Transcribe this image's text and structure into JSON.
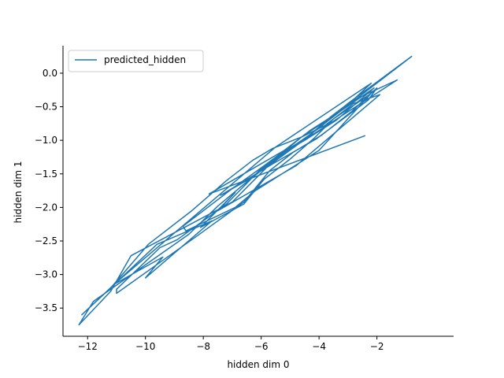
{
  "chart_data": {
    "type": "line",
    "title": "",
    "xlabel": "hidden dim 0",
    "ylabel": "hidden dim 1",
    "xlim": [
      -12.85,
      0.65
    ],
    "ylim": [
      -3.92,
      0.41
    ],
    "xticks": [
      -12,
      -10,
      -8,
      -6,
      -4,
      -2
    ],
    "yticks": [
      -3.5,
      -3.0,
      -2.5,
      -2.0,
      -1.5,
      -1.0,
      -0.5,
      0.0
    ],
    "x_tick_labels": [
      "−12",
      "−10",
      "−8",
      "−6",
      "−4",
      "−2"
    ],
    "y_tick_labels": [
      "−3.5",
      "−3.0",
      "−2.5",
      "−2.0",
      "−1.5",
      "−1.0",
      "−0.5",
      "0.0"
    ],
    "grid": false,
    "legend_position": "top-left",
    "series": [
      {
        "name": "predicted_hidden",
        "color": "#1f77b4",
        "x": [
          -2.4,
          -7.8,
          -6.2,
          -5.2,
          -4.3,
          -3.2,
          -2.2,
          -5.5,
          -11.1,
          -9.4,
          -10.0,
          -7.7,
          -9.6,
          -12.2,
          -11.2,
          -9.9,
          -8.4,
          -7.2,
          -6.3,
          -5.6,
          -4.6,
          -3.8,
          -2.8,
          -1.9,
          -4.8,
          -7.5,
          -6.9,
          -8.1,
          -6.6,
          -5.9,
          -5.0,
          -4.2,
          -3.5,
          -2.6,
          -2.2,
          -4.0,
          -6.2,
          -6.9,
          -8.6,
          -8.7,
          -7.0,
          -5.9,
          -5.4,
          -4.4,
          -3.6,
          -2.9,
          -1.3,
          -4.6,
          -5.8,
          -7.0,
          -10.5,
          -11.2,
          -12.3,
          -11.8,
          -8.5,
          -7.5,
          -6.5,
          -5.2,
          -4.0,
          -3.0,
          -0.8,
          -2.4,
          -4.8,
          -6.0,
          -7.2,
          -8.9,
          -9.5,
          -11.0,
          -11.0,
          -8.2,
          -6.6,
          -5.7,
          -4.9,
          -3.9,
          -2.9,
          -2.0,
          -2.3,
          -4.1,
          -5.6,
          -7.4,
          -6.3,
          -5.4,
          -4.5,
          -3.4,
          -2.1,
          -3.2,
          -4.6,
          -6.0,
          -5.1,
          -4.2
        ],
        "y": [
          -0.93,
          -1.8,
          -1.4,
          -1.15,
          -0.85,
          -0.55,
          -0.15,
          -1.1,
          -3.15,
          -2.74,
          -3.05,
          -2.2,
          -2.55,
          -3.6,
          -3.2,
          -2.55,
          -2.05,
          -1.6,
          -1.3,
          -1.12,
          -0.95,
          -0.78,
          -0.45,
          -0.32,
          -1.38,
          -2.05,
          -1.78,
          -2.3,
          -1.95,
          -1.58,
          -1.28,
          -0.98,
          -0.68,
          -0.42,
          -0.3,
          -1.15,
          -1.75,
          -2.0,
          -2.35,
          -2.28,
          -1.72,
          -1.38,
          -1.22,
          -0.95,
          -0.65,
          -0.42,
          -0.1,
          -1.02,
          -1.4,
          -1.92,
          -2.72,
          -3.25,
          -3.75,
          -3.4,
          -2.4,
          -1.98,
          -1.62,
          -1.18,
          -0.82,
          -0.45,
          0.25,
          -0.28,
          -1.08,
          -1.42,
          -1.95,
          -2.48,
          -2.6,
          -3.22,
          -3.28,
          -2.42,
          -1.92,
          -1.45,
          -1.18,
          -0.92,
          -0.58,
          -0.22,
          -0.4,
          -0.98,
          -1.35,
          -1.82,
          -1.55,
          -1.22,
          -1.0,
          -0.7,
          -0.22,
          -0.55,
          -0.95,
          -1.45,
          -1.15,
          -0.9
        ]
      }
    ]
  }
}
